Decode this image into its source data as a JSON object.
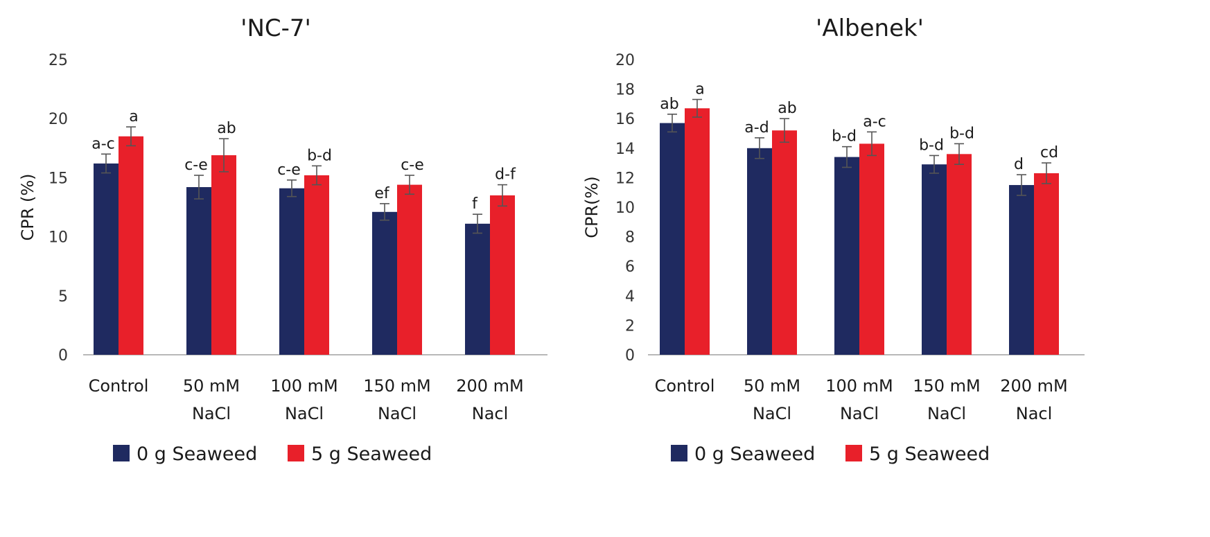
{
  "colors": {
    "series0": "#1f2a60",
    "series1": "#e8202a",
    "axis": "#b8b8b8",
    "error": "#555555"
  },
  "chart_data": [
    {
      "type": "bar",
      "title": "'NC-7'",
      "ylabel": "CPR (%)",
      "xlabel": "",
      "ylim": [
        0,
        25
      ],
      "yticks": [
        0,
        5,
        10,
        15,
        20,
        25
      ],
      "categories": [
        [
          "Control"
        ],
        [
          "50 mM",
          "NaCl"
        ],
        [
          "100 mM",
          "NaCl"
        ],
        [
          "150 mM",
          "NaCl"
        ],
        [
          "200 mM",
          "Nacl"
        ]
      ],
      "series": [
        {
          "name": "0 g Seaweed",
          "values": [
            16.2,
            14.2,
            14.1,
            12.1,
            11.1
          ],
          "errors": [
            0.8,
            1.0,
            0.7,
            0.7,
            0.8
          ],
          "letters": [
            "a-c",
            "c-e",
            "c-e",
            "ef",
            "f"
          ]
        },
        {
          "name": "5 g Seaweed",
          "values": [
            18.5,
            16.9,
            15.2,
            14.4,
            13.5
          ],
          "errors": [
            0.8,
            1.4,
            0.8,
            0.8,
            0.9
          ],
          "letters": [
            "a",
            "ab",
            "b-d",
            "c-e",
            "d-f"
          ]
        }
      ],
      "legend": [
        "0 g Seaweed",
        "5 g Seaweed"
      ],
      "legend_position": "bottom"
    },
    {
      "type": "bar",
      "title": "'Albenek'",
      "ylabel": "CPR(%)",
      "xlabel": "",
      "ylim": [
        0,
        20
      ],
      "yticks": [
        0,
        2,
        4,
        6,
        8,
        10,
        12,
        14,
        16,
        18,
        20
      ],
      "categories": [
        [
          "Control"
        ],
        [
          "50 mM",
          "NaCl"
        ],
        [
          "100 mM",
          "NaCl"
        ],
        [
          "150 mM",
          "NaCl"
        ],
        [
          "200 mM",
          "Nacl"
        ]
      ],
      "series": [
        {
          "name": "0 g Seaweed",
          "values": [
            15.7,
            14.0,
            13.4,
            12.9,
            11.5
          ],
          "errors": [
            0.6,
            0.7,
            0.7,
            0.6,
            0.7
          ],
          "letters": [
            "ab",
            "a-d",
            "b-d",
            "b-d",
            "d"
          ]
        },
        {
          "name": "5 g Seaweed",
          "values": [
            16.7,
            15.2,
            14.3,
            13.6,
            12.3
          ],
          "errors": [
            0.6,
            0.8,
            0.8,
            0.7,
            0.7
          ],
          "letters": [
            "a",
            "ab",
            "a-c",
            "b-d",
            "cd"
          ]
        }
      ],
      "legend": [
        "0 g Seaweed",
        "5 g Seaweed"
      ],
      "legend_position": "bottom"
    }
  ]
}
